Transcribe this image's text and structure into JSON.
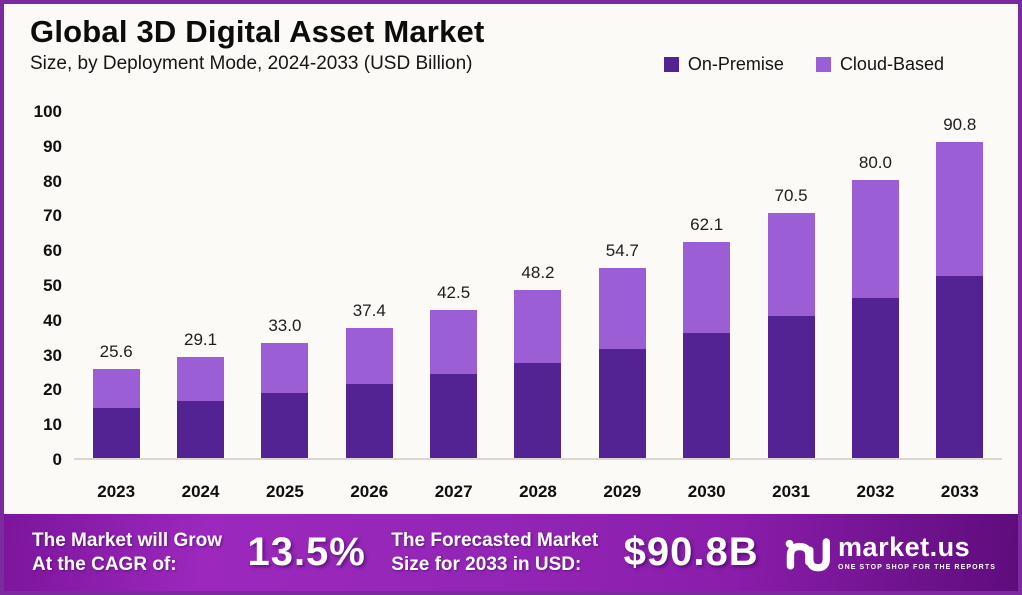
{
  "header": {
    "title": "Global 3D Digital Asset Market",
    "subtitle": "Size, by Deployment Mode, 2024-2033 (USD Billion)"
  },
  "legend": [
    {
      "label": "On-Premise",
      "color": "#542393"
    },
    {
      "label": "Cloud-Based",
      "color": "#9c5ed4"
    }
  ],
  "chart_data": {
    "type": "bar",
    "stacked": true,
    "title": "Global 3D Digital Asset Market Size, by Deployment Mode, 2024-2033 (USD Billion)",
    "categories": [
      "2023",
      "2024",
      "2025",
      "2026",
      "2027",
      "2028",
      "2029",
      "2030",
      "2031",
      "2032",
      "2033"
    ],
    "series": [
      {
        "name": "On-Premise",
        "color": "#542393",
        "values": [
          14.5,
          16.5,
          18.7,
          21.2,
          24.0,
          27.3,
          31.3,
          36.0,
          40.7,
          46.0,
          52.3
        ]
      },
      {
        "name": "Cloud-Based",
        "color": "#9c5ed4",
        "values": [
          11.1,
          12.6,
          14.3,
          16.2,
          18.5,
          20.9,
          23.4,
          26.1,
          29.8,
          34.0,
          38.5
        ]
      }
    ],
    "totals": [
      25.6,
      29.1,
      33.0,
      37.4,
      42.5,
      48.2,
      54.7,
      62.1,
      70.5,
      80.0,
      90.8
    ],
    "xlabel": "",
    "ylabel": "",
    "ylim": [
      0,
      100
    ],
    "yticks": [
      0,
      10,
      20,
      30,
      40,
      50,
      60,
      70,
      80,
      90,
      100
    ],
    "grid": false,
    "legend_position": "top-right"
  },
  "banner": {
    "cagr_label_line1": "The Market will Grow",
    "cagr_label_line2": "At the CAGR of:",
    "cagr_value": "13.5%",
    "forecast_label_line1": "The Forecasted Market",
    "forecast_label_line2": "Size for 2033 in USD:",
    "forecast_value": "$90.8B",
    "brand": {
      "name": "market.us",
      "tagline": "ONE STOP SHOP FOR THE REPORTS"
    }
  }
}
